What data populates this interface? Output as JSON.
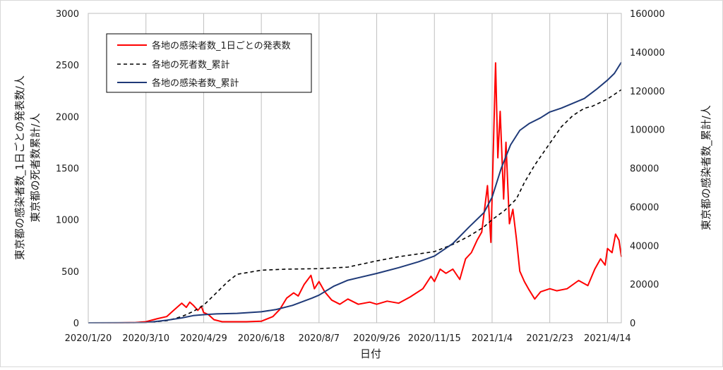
{
  "chart_data": {
    "type": "line",
    "xlabel": "日付",
    "ylabel_left_1": "東京都の感染者数_1日ごとの発表数/人",
    "ylabel_left_2": "東京都の死者数累計/人",
    "ylabel_right": "東京都の感染者数_累計/人",
    "x_ticks": [
      "2020/1/20",
      "2020/3/10",
      "2020/4/29",
      "2020/6/18",
      "2020/8/7",
      "2020/9/26",
      "2020/11/15",
      "2021/1/4",
      "2021/2/23",
      "2021/4/14"
    ],
    "x_range": [
      "2020/1/20",
      "2021/4/26"
    ],
    "ylim_left": [
      0,
      3000
    ],
    "yticks_left": [
      "0",
      "500",
      "1000",
      "1500",
      "2000",
      "2500",
      "3000"
    ],
    "ylim_right": [
      0,
      160000
    ],
    "yticks_right": [
      "0",
      "20000",
      "40000",
      "60000",
      "80000",
      "100000",
      "120000",
      "140000",
      "160000"
    ],
    "grid": "vertical",
    "legend_position": "top-left",
    "series": [
      {
        "name": "各地の感染者数_1日ごとの発表数",
        "axis": "left",
        "color": "#ff0000",
        "style": "solid",
        "x": [
          "2020/1/20",
          "2020/2/1",
          "2020/2/15",
          "2020/3/1",
          "2020/3/10",
          "2020/3/20",
          "2020/3/28",
          "2020/4/3",
          "2020/4/10",
          "2020/4/14",
          "2020/4/17",
          "2020/4/20",
          "2020/4/24",
          "2020/4/27",
          "2020/4/29",
          "2020/5/3",
          "2020/5/8",
          "2020/5/15",
          "2020/5/25",
          "2020/6/5",
          "2020/6/18",
          "2020/6/28",
          "2020/7/4",
          "2020/7/10",
          "2020/7/16",
          "2020/7/20",
          "2020/7/25",
          "2020/7/31",
          "2020/8/3",
          "2020/8/7",
          "2020/8/12",
          "2020/8/18",
          "2020/8/25",
          "2020/9/1",
          "2020/9/10",
          "2020/9/20",
          "2020/9/26",
          "2020/10/5",
          "2020/10/15",
          "2020/10/25",
          "2020/11/5",
          "2020/11/12",
          "2020/11/15",
          "2020/11/20",
          "2020/11/25",
          "2020/12/1",
          "2020/12/7",
          "2020/12/12",
          "2020/12/17",
          "2020/12/22",
          "2020/12/26",
          "2020/12/31",
          "2021/1/3",
          "2021/1/7",
          "2021/1/9",
          "2021/1/11",
          "2021/1/14",
          "2021/1/16",
          "2021/1/19",
          "2021/1/22",
          "2021/1/25",
          "2021/1/28",
          "2021/2/1",
          "2021/2/5",
          "2021/2/10",
          "2021/2/15",
          "2021/2/23",
          "2021/3/1",
          "2021/3/10",
          "2021/3/20",
          "2021/3/28",
          "2021/4/3",
          "2021/4/8",
          "2021/4/12",
          "2021/4/14",
          "2021/4/18",
          "2021/4/21",
          "2021/4/24",
          "2021/4/26"
        ],
        "values": [
          0,
          0,
          0,
          3,
          10,
          40,
          60,
          120,
          190,
          150,
          200,
          170,
          120,
          160,
          100,
          80,
          30,
          10,
          10,
          10,
          15,
          60,
          130,
          240,
          290,
          260,
          370,
          460,
          330,
          400,
          300,
          220,
          180,
          230,
          180,
          200,
          180,
          210,
          190,
          250,
          330,
          450,
          400,
          520,
          480,
          520,
          420,
          620,
          680,
          800,
          880,
          1330,
          780,
          2520,
          1600,
          2050,
          1200,
          1750,
          960,
          1100,
          820,
          500,
          400,
          320,
          230,
          300,
          330,
          310,
          330,
          410,
          360,
          520,
          620,
          560,
          720,
          680,
          860,
          800,
          640
        ]
      },
      {
        "name": "各地の死者数_累計",
        "axis": "left",
        "color": "#000000",
        "style": "dashed",
        "x": [
          "2020/1/20",
          "2020/3/10",
          "2020/3/28",
          "2020/4/10",
          "2020/4/20",
          "2020/4/29",
          "2020/5/10",
          "2020/5/20",
          "2020/5/28",
          "2020/6/18",
          "2020/7/10",
          "2020/8/7",
          "2020/9/1",
          "2020/9/26",
          "2020/10/15",
          "2020/11/15",
          "2020/12/1",
          "2020/12/15",
          "2020/12/28",
          "2021/1/4",
          "2021/1/15",
          "2021/1/25",
          "2021/2/1",
          "2021/2/10",
          "2021/2/23",
          "2021/3/5",
          "2021/3/15",
          "2021/3/25",
          "2021/4/1",
          "2021/4/14",
          "2021/4/26"
        ],
        "values": [
          0,
          2,
          20,
          60,
          110,
          170,
          290,
          400,
          470,
          510,
          520,
          525,
          540,
          600,
          640,
          690,
          760,
          840,
          930,
          1000,
          1090,
          1200,
          1360,
          1530,
          1740,
          1900,
          2010,
          2080,
          2100,
          2170,
          2260
        ]
      },
      {
        "name": "各地の感染者数_累計",
        "axis": "right",
        "color": "#1f3a78",
        "style": "solid",
        "x": [
          "2020/1/20",
          "2020/3/10",
          "2020/3/28",
          "2020/4/10",
          "2020/4/20",
          "2020/4/29",
          "2020/5/10",
          "2020/5/28",
          "2020/6/18",
          "2020/7/1",
          "2020/7/15",
          "2020/8/1",
          "2020/8/7",
          "2020/8/20",
          "2020/9/1",
          "2020/9/26",
          "2020/10/15",
          "2020/11/1",
          "2020/11/15",
          "2020/12/1",
          "2020/12/15",
          "2020/12/28",
          "2021/1/4",
          "2021/1/12",
          "2021/1/20",
          "2021/1/28",
          "2021/2/5",
          "2021/2/15",
          "2021/2/23",
          "2021/3/5",
          "2021/3/15",
          "2021/3/25",
          "2021/4/5",
          "2021/4/14",
          "2021/4/20",
          "2021/4/26"
        ],
        "values": [
          0,
          100,
          1300,
          2500,
          3700,
          4200,
          4600,
          4900,
          5700,
          6900,
          9000,
          12800,
          14300,
          19000,
          22000,
          25500,
          28500,
          31500,
          34500,
          41000,
          49500,
          57000,
          65000,
          80000,
          92000,
          99500,
          103000,
          106000,
          109000,
          111000,
          113500,
          116000,
          121000,
          125500,
          129000,
          134700
        ]
      }
    ]
  }
}
